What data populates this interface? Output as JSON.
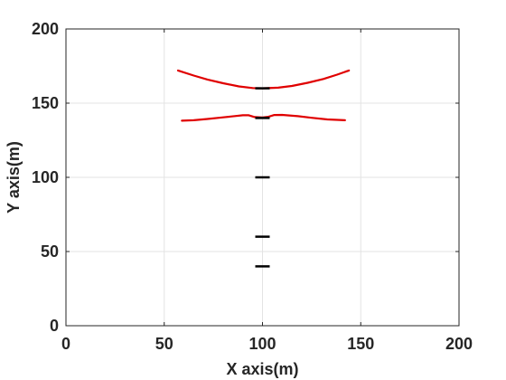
{
  "chart_data": {
    "type": "line",
    "title": "",
    "xlabel": "X axis(m)",
    "ylabel": "Y axis(m)",
    "xlim": [
      0,
      200
    ],
    "ylim": [
      0,
      200
    ],
    "xticks": [
      "0",
      "50",
      "100",
      "150",
      "200"
    ],
    "yticks": [
      "0",
      "50",
      "100",
      "150",
      "200"
    ],
    "grid": true,
    "legend": "none",
    "series": [
      {
        "color": "#e00000",
        "x": [
          57,
          65,
          72,
          80,
          88,
          95,
          100,
          108,
          115,
          123,
          131,
          138,
          144
        ],
        "y": [
          172,
          168.6,
          165.9,
          163.4,
          161.3,
          160.2,
          160,
          160.4,
          161.6,
          163.7,
          166.3,
          169.2,
          172
        ]
      },
      {
        "color": "#e00000",
        "x": [
          59,
          65,
          72,
          80,
          86,
          90,
          93,
          96,
          100,
          103,
          106,
          110,
          118,
          125,
          133,
          142
        ],
        "y": [
          138.2,
          138.5,
          139.3,
          140.4,
          141.3,
          141.8,
          141.8,
          140.6,
          140.3,
          140.8,
          142,
          142.1,
          141.2,
          140.1,
          139,
          138.5
        ]
      }
    ],
    "markers": {
      "color": "#000000",
      "x": 100,
      "y": [
        160,
        140,
        100,
        60,
        40
      ]
    }
  }
}
